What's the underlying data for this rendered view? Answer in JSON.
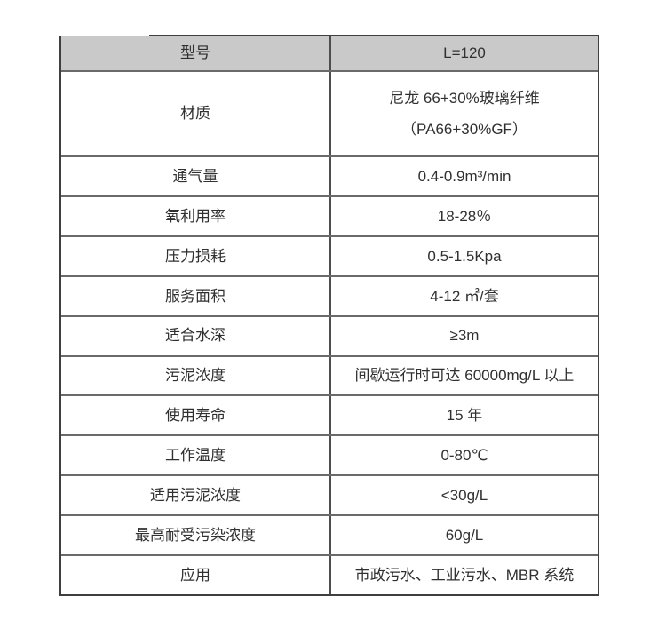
{
  "table": {
    "header": {
      "param": "型号",
      "value": "L=120"
    },
    "material_row": {
      "label": "材质",
      "value_line1": "尼龙 66+30%玻璃纤维",
      "value_line2": "（PA66+30%GF）"
    },
    "rows": [
      {
        "label": "通气量",
        "value": "0.4-0.9m³/min"
      },
      {
        "label": "氧利用率",
        "value": "18-28％"
      },
      {
        "label": "压力损耗",
        "value": "0.5-1.5Kpa"
      },
      {
        "label": "服务面积",
        "value": "4-12 ㎡/套"
      },
      {
        "label": "适合水深",
        "value": "≥3m"
      },
      {
        "label": "污泥浓度",
        "value": "间歇运行时可达 60000mg/L 以上"
      },
      {
        "label": "使用寿命",
        "value": "15 年"
      },
      {
        "label": "工作温度",
        "value": "0-80℃"
      },
      {
        "label": "适用污泥浓度",
        "value": "<30g/L"
      },
      {
        "label": "最高耐受污染浓度",
        "value": "60g/L"
      },
      {
        "label": "应用",
        "value": "市政污水、工业污水、MBR 系统"
      }
    ],
    "colors": {
      "header_bg": "#c9c9c9",
      "border_outer": "#3f3f3f",
      "border_inner": "#6a6a6a",
      "column_divider": "#4d4d4d",
      "text": "#303030",
      "background": "#ffffff"
    }
  }
}
